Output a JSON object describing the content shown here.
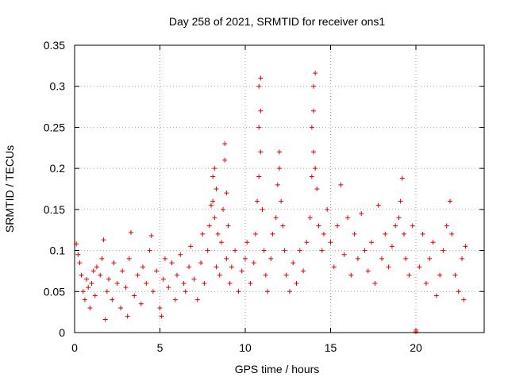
{
  "chart_data": {
    "type": "scatter",
    "title": "Day 258 of 2021, SRMTID for receiver ons1",
    "xlabel": "GPS time / hours",
    "ylabel": "SRMTID / TECUs",
    "xlim": [
      0,
      24
    ],
    "ylim": [
      0,
      0.35
    ],
    "xticks": [
      0,
      5,
      10,
      15,
      20
    ],
    "xtick_labels": [
      "0",
      "5",
      "10",
      "15",
      "20"
    ],
    "yticks": [
      0,
      0.05,
      0.1,
      0.15,
      0.2,
      0.25,
      0.3,
      0.35
    ],
    "ytick_labels": [
      "0",
      "0.05",
      "0.1",
      "0.15",
      "0.2",
      "0.25",
      "0.3",
      "0.35"
    ],
    "grid": true,
    "marker": "+",
    "color": "#e00000",
    "series": [
      {
        "name": "ons1",
        "points": [
          [
            0.1,
            0.108
          ],
          [
            0.2,
            0.095
          ],
          [
            0.3,
            0.085
          ],
          [
            0.4,
            0.07
          ],
          [
            0.5,
            0.05
          ],
          [
            0.6,
            0.04
          ],
          [
            0.7,
            0.065
          ],
          [
            0.8,
            0.055
          ],
          [
            0.9,
            0.03
          ],
          [
            1.0,
            0.06
          ],
          [
            1.1,
            0.075
          ],
          [
            1.2,
            0.045
          ],
          [
            1.3,
            0.08
          ],
          [
            1.5,
            0.07
          ],
          [
            1.6,
            0.09
          ],
          [
            1.7,
            0.113
          ],
          [
            1.8,
            0.016
          ],
          [
            1.9,
            0.05
          ],
          [
            2.0,
            0.065
          ],
          [
            2.2,
            0.04
          ],
          [
            2.3,
            0.085
          ],
          [
            2.5,
            0.06
          ],
          [
            2.7,
            0.03
          ],
          [
            2.8,
            0.075
          ],
          [
            3.0,
            0.055
          ],
          [
            3.1,
            0.02
          ],
          [
            3.2,
            0.09
          ],
          [
            3.3,
            0.122
          ],
          [
            3.5,
            0.045
          ],
          [
            3.7,
            0.07
          ],
          [
            3.9,
            0.035
          ],
          [
            4.0,
            0.08
          ],
          [
            4.2,
            0.06
          ],
          [
            4.4,
            0.1
          ],
          [
            4.5,
            0.118
          ],
          [
            4.6,
            0.05
          ],
          [
            4.8,
            0.075
          ],
          [
            5.0,
            0.03
          ],
          [
            5.1,
            0.02
          ],
          [
            5.2,
            0.065
          ],
          [
            5.3,
            0.09
          ],
          [
            5.5,
            0.055
          ],
          [
            5.7,
            0.085
          ],
          [
            5.9,
            0.04
          ],
          [
            6.0,
            0.07
          ],
          [
            6.2,
            0.095
          ],
          [
            6.4,
            0.06
          ],
          [
            6.5,
            0.05
          ],
          [
            6.7,
            0.08
          ],
          [
            6.8,
            0.105
          ],
          [
            7.0,
            0.065
          ],
          [
            7.2,
            0.04
          ],
          [
            7.4,
            0.085
          ],
          [
            7.5,
            0.12
          ],
          [
            7.6,
            0.06
          ],
          [
            7.8,
            0.1
          ],
          [
            7.9,
            0.13
          ],
          [
            8.0,
            0.155
          ],
          [
            8.1,
            0.19
          ],
          [
            8.2,
            0.2
          ],
          [
            8.1,
            0.16
          ],
          [
            8.2,
            0.14
          ],
          [
            8.3,
            0.175
          ],
          [
            8.4,
            0.12
          ],
          [
            8.3,
            0.08
          ],
          [
            8.5,
            0.07
          ],
          [
            8.6,
            0.11
          ],
          [
            8.7,
            0.15
          ],
          [
            8.8,
            0.23
          ],
          [
            8.8,
            0.21
          ],
          [
            8.9,
            0.17
          ],
          [
            9.0,
            0.13
          ],
          [
            8.9,
            0.09
          ],
          [
            9.1,
            0.06
          ],
          [
            9.2,
            0.08
          ],
          [
            9.4,
            0.1
          ],
          [
            9.6,
            0.05
          ],
          [
            9.8,
            0.075
          ],
          [
            10.0,
            0.09
          ],
          [
            10.1,
            0.11
          ],
          [
            10.3,
            0.06
          ],
          [
            10.5,
            0.085
          ],
          [
            10.6,
            0.12
          ],
          [
            10.7,
            0.16
          ],
          [
            10.8,
            0.19
          ],
          [
            10.8,
            0.25
          ],
          [
            10.9,
            0.27
          ],
          [
            10.8,
            0.3
          ],
          [
            10.9,
            0.31
          ],
          [
            10.9,
            0.22
          ],
          [
            11.0,
            0.15
          ],
          [
            11.1,
            0.1
          ],
          [
            11.2,
            0.07
          ],
          [
            11.3,
            0.05
          ],
          [
            11.5,
            0.09
          ],
          [
            11.6,
            0.12
          ],
          [
            11.8,
            0.14
          ],
          [
            11.9,
            0.18
          ],
          [
            12.0,
            0.22
          ],
          [
            12.0,
            0.2
          ],
          [
            12.1,
            0.16
          ],
          [
            12.2,
            0.13
          ],
          [
            12.3,
            0.1
          ],
          [
            12.4,
            0.07
          ],
          [
            12.6,
            0.05
          ],
          [
            12.8,
            0.085
          ],
          [
            13.0,
            0.06
          ],
          [
            13.2,
            0.1
          ],
          [
            13.4,
            0.075
          ],
          [
            13.6,
            0.11
          ],
          [
            13.8,
            0.14
          ],
          [
            13.9,
            0.19
          ],
          [
            13.9,
            0.25
          ],
          [
            14.0,
            0.27
          ],
          [
            14.0,
            0.3
          ],
          [
            14.1,
            0.316
          ],
          [
            14.0,
            0.22
          ],
          [
            14.1,
            0.2
          ],
          [
            14.2,
            0.175
          ],
          [
            14.3,
            0.13
          ],
          [
            14.5,
            0.1
          ],
          [
            14.6,
            0.12
          ],
          [
            14.8,
            0.15
          ],
          [
            15.0,
            0.11
          ],
          [
            15.2,
            0.08
          ],
          [
            15.4,
            0.13
          ],
          [
            15.6,
            0.18
          ],
          [
            15.8,
            0.095
          ],
          [
            16.0,
            0.14
          ],
          [
            16.2,
            0.07
          ],
          [
            16.4,
            0.12
          ],
          [
            16.6,
            0.09
          ],
          [
            16.8,
            0.145
          ],
          [
            17.0,
            0.1
          ],
          [
            17.2,
            0.075
          ],
          [
            17.4,
            0.11
          ],
          [
            17.6,
            0.06
          ],
          [
            17.8,
            0.155
          ],
          [
            18.0,
            0.09
          ],
          [
            18.2,
            0.12
          ],
          [
            18.4,
            0.08
          ],
          [
            18.6,
            0.105
          ],
          [
            18.8,
            0.13
          ],
          [
            19.0,
            0.14
          ],
          [
            19.1,
            0.16
          ],
          [
            19.2,
            0.188
          ],
          [
            19.3,
            0.12
          ],
          [
            19.4,
            0.09
          ],
          [
            19.6,
            0.07
          ],
          [
            19.8,
            0.13
          ],
          [
            20.0,
            0.001
          ],
          [
            20.0,
            0.003
          ],
          [
            20.2,
            0.08
          ],
          [
            20.4,
            0.12
          ],
          [
            20.6,
            0.06
          ],
          [
            20.8,
            0.09
          ],
          [
            21.0,
            0.11
          ],
          [
            21.2,
            0.045
          ],
          [
            21.4,
            0.07
          ],
          [
            21.6,
            0.1
          ],
          [
            21.8,
            0.13
          ],
          [
            22.0,
            0.16
          ],
          [
            22.1,
            0.12
          ],
          [
            22.3,
            0.07
          ],
          [
            22.5,
            0.05
          ],
          [
            22.7,
            0.09
          ],
          [
            22.8,
            0.04
          ],
          [
            22.9,
            0.105
          ]
        ]
      }
    ]
  }
}
